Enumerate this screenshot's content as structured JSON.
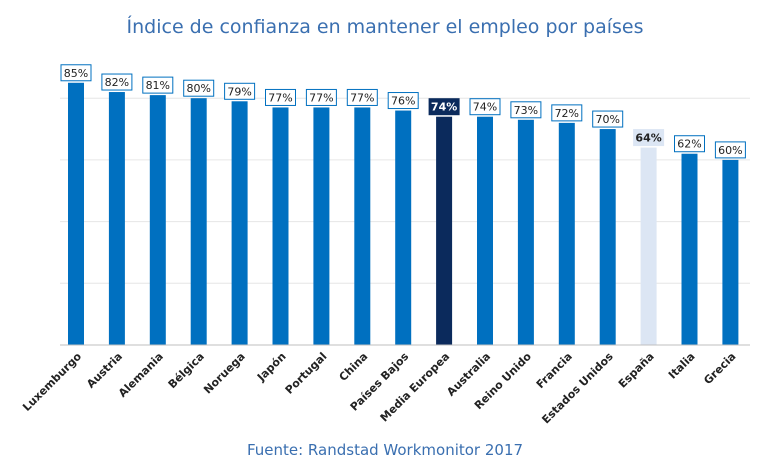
{
  "title": "Índice de confianza en mantener el empleo por países",
  "source": "Fuente: Randstad Workmonitor 2017",
  "colors": {
    "bar": "#0070c0",
    "highlight_dark": "#0b2a5c",
    "highlight_light": "#dce6f4",
    "label_border": "#0070c0",
    "grid": "#e6e6e6"
  },
  "chart_data": {
    "type": "bar",
    "title": "Índice de confianza en mantener el empleo por países",
    "xlabel": "",
    "ylabel": "",
    "ylim": [
      0,
      100
    ],
    "grid": true,
    "unit": "%",
    "categories": [
      "Luxemburgo",
      "Austria",
      "Alemania",
      "Bélgica",
      "Noruega",
      "Japón",
      "Portugal",
      "China",
      "Países Bajos",
      "Media Europea",
      "Australia",
      "Reino Unido",
      "Francia",
      "Estados Unidos",
      "España",
      "Italia",
      "Grecia"
    ],
    "values": [
      85,
      82,
      81,
      80,
      79,
      77,
      77,
      77,
      76,
      74,
      74,
      73,
      72,
      70,
      64,
      62,
      60
    ],
    "data_labels": [
      "85%",
      "82%",
      "81%",
      "80%",
      "79%",
      "77%",
      "77%",
      "77%",
      "76%",
      "74%",
      "74%",
      "73%",
      "72%",
      "70%",
      "64%",
      "62%",
      "60%"
    ],
    "highlights": {
      "Media Europea": "dark",
      "España": "light"
    }
  }
}
